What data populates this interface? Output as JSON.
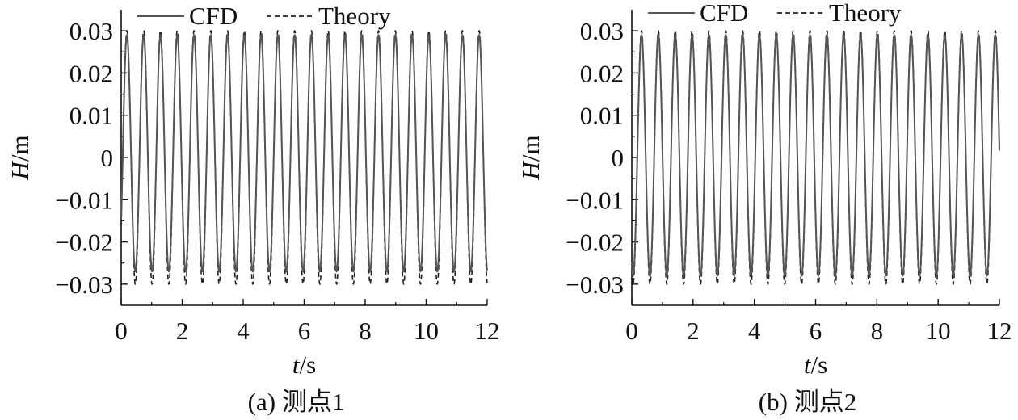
{
  "chart_data": [
    {
      "type": "line",
      "caption": "(a) 测点1",
      "xlabel_var": "t",
      "xlabel_unit": "/s",
      "ylabel_var": "H",
      "ylabel_unit": "/m",
      "xlim": [
        0,
        12
      ],
      "ylim": [
        -0.035,
        0.035
      ],
      "xticks": [
        "0",
        "2",
        "4",
        "6",
        "8",
        "10",
        "12"
      ],
      "yticks": [
        "0.03",
        "0.02",
        "0.01",
        "0",
        "−0.01",
        "−0.02",
        "−0.03"
      ],
      "ytick_values": [
        0.03,
        0.02,
        0.01,
        0,
        -0.01,
        -0.02,
        -0.03
      ],
      "xtick_values": [
        0,
        2,
        4,
        6,
        8,
        10,
        12
      ],
      "grid": false,
      "legend_position": "top",
      "series": [
        {
          "name": "CFD",
          "style": "solid",
          "color": "#555555",
          "amplitude_pos": 0.029,
          "amplitude_neg": -0.027,
          "period_s": 0.55,
          "phase_s": 0.05
        },
        {
          "name": "Theory",
          "style": "dashed",
          "color": "#222222",
          "amplitude_pos": 0.03,
          "amplitude_neg": -0.03,
          "period_s": 0.55,
          "phase_s": 0.05
        }
      ]
    },
    {
      "type": "line",
      "caption": "(b) 测点2",
      "xlabel_var": "t",
      "xlabel_unit": "/s",
      "ylabel_var": "H",
      "ylabel_unit": "/m",
      "xlim": [
        0,
        12
      ],
      "ylim": [
        -0.035,
        0.035
      ],
      "xticks": [
        "0",
        "2",
        "4",
        "6",
        "8",
        "10",
        "12"
      ],
      "yticks": [
        "0.03",
        "0.02",
        "0.01",
        "0",
        "−0.01",
        "−0.02",
        "−0.03"
      ],
      "ytick_values": [
        0.03,
        0.02,
        0.01,
        0,
        -0.01,
        -0.02,
        -0.03
      ],
      "xtick_values": [
        0,
        2,
        4,
        6,
        8,
        10,
        12
      ],
      "grid": false,
      "legend_position": "top",
      "series": [
        {
          "name": "CFD",
          "style": "solid",
          "color": "#555555",
          "amplitude_pos": 0.029,
          "amplitude_neg": -0.028,
          "period_s": 0.55,
          "phase_s": 0.18
        },
        {
          "name": "Theory",
          "style": "dashed",
          "color": "#222222",
          "amplitude_pos": 0.03,
          "amplitude_neg": -0.03,
          "period_s": 0.55,
          "phase_s": 0.18
        }
      ]
    }
  ]
}
